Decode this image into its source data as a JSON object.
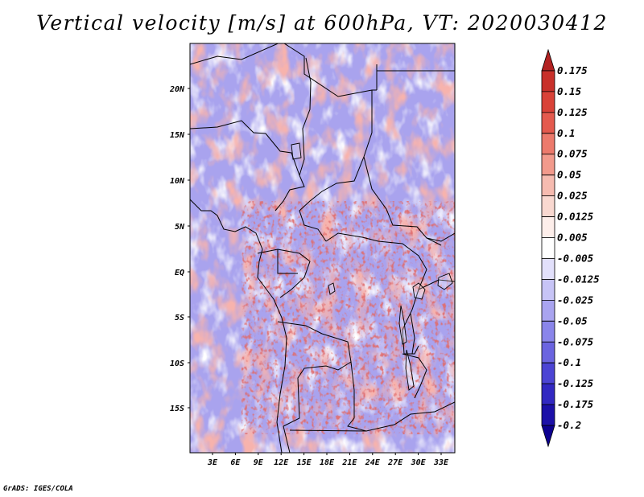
{
  "title": "Vertical velocity [m/s] at 600hPa, VT: 2020030412",
  "credit": "GrADS: IGES/COLA",
  "map": {
    "lon_labels": [
      "3E",
      "6E",
      "9E",
      "12E",
      "15E",
      "18E",
      "21E",
      "24E",
      "27E",
      "30E",
      "33E"
    ],
    "lat_labels": [
      "20N",
      "15N",
      "10N",
      "5N",
      "EQ",
      "5S",
      "10S",
      "15S"
    ]
  },
  "colorbar": {
    "labels": [
      "0.175",
      "0.15",
      "0.125",
      "0.1",
      "0.075",
      "0.05",
      "0.025",
      "0.0125",
      "0.005",
      "-0.005",
      "-0.0125",
      "-0.025",
      "-0.05",
      "-0.075",
      "-0.1",
      "-0.125",
      "-0.175",
      "-0.2"
    ],
    "colors": [
      "#b22222",
      "#c8302a",
      "#d94238",
      "#e45a4e",
      "#ec7a6c",
      "#f29a8c",
      "#f6bbb0",
      "#f9d8d0",
      "#fdeeea",
      "#ffffff",
      "#e2e0fb",
      "#c7c4f6",
      "#a9a4f0",
      "#8a85ea",
      "#6b64e0",
      "#4c44d4",
      "#3228c2",
      "#1c10a8",
      "#0d0090"
    ]
  }
}
